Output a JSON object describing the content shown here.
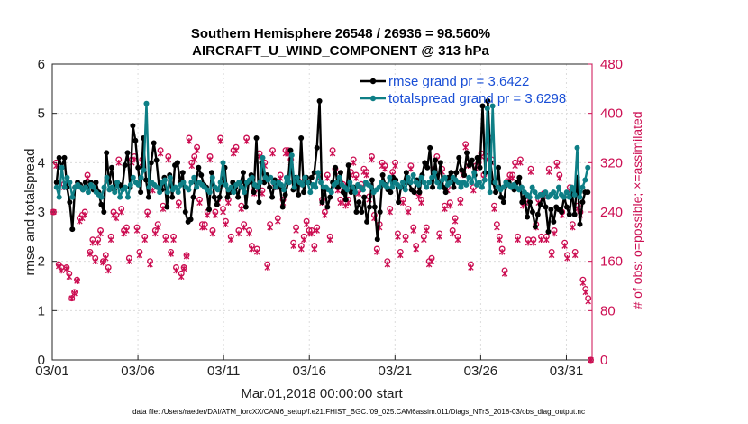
{
  "chart_data": {
    "type": "line",
    "title": "Southern Hemisphere 26548 / 26936 = 98.560%",
    "subtitle": "AIRCRAFT_U_WIND_COMPONENT @ 313 hPa",
    "xlabel": "Mar.01,2018 00:00:00 start",
    "ylabel_left": "rmse and totalspread",
    "ylabel_right": "# of obs: o=possible; ×=assimilated",
    "xlim": [
      0,
      31.5
    ],
    "ylim_left": [
      0,
      6
    ],
    "ylim_right": [
      0,
      480
    ],
    "x_tick_values": [
      0,
      5,
      10,
      15,
      20,
      25,
      30
    ],
    "x_tick_labels": [
      "03/01",
      "03/06",
      "03/11",
      "03/16",
      "03/21",
      "03/26",
      "03/31"
    ],
    "y_left_ticks": [
      "0",
      "1",
      "2",
      "3",
      "4",
      "5",
      "6"
    ],
    "y_right_ticks": [
      "0",
      "80",
      "160",
      "240",
      "320",
      "400",
      "480"
    ],
    "colors": {
      "rmse": "#000000",
      "spread": "#0e7f86",
      "obs": "#cc0e52",
      "legend_text": "#1a4fd6"
    },
    "series": [
      {
        "name": "rmse",
        "legend": "rmse grand pr = 3.6422",
        "values": [
          3.6,
          4.1,
          3.9,
          4.1,
          3.5,
          3.2,
          2.65,
          3.5,
          3.6,
          3.55,
          3.45,
          3.6,
          3.5,
          3.6,
          3.45,
          3.6,
          3.4,
          3.15,
          3.0,
          4.2,
          3.6,
          3.9,
          3.45,
          3.6,
          3.55,
          3.5,
          3.95,
          4.2,
          3.5,
          4.75,
          4.45,
          3.9,
          3.4,
          4.5,
          3.65,
          3.3,
          4.0,
          4.4,
          4.05,
          3.5,
          3.45,
          3.7,
          3.1,
          3.75,
          3.3,
          3.95,
          4.0,
          3.6,
          3.8,
          3.0,
          2.8,
          2.85,
          3.3,
          3.6,
          3.9,
          3.75,
          3.55,
          3.5,
          3.05,
          3.8,
          3.3,
          3.15,
          3.3,
          3.6,
          3.9,
          3.3,
          3.4,
          3.6,
          3.5,
          3.3,
          3.6,
          3.8,
          3.1,
          3.6,
          3.75,
          3.4,
          4.5,
          3.2,
          4.0,
          3.6,
          3.75,
          3.5,
          3.3,
          3.65,
          3.55,
          3.5,
          3.1,
          3.35,
          3.6,
          4.25,
          3.45,
          3.7,
          3.35,
          4.5,
          3.4,
          3.7,
          3.6,
          3.7,
          3.8,
          4.3,
          5.25,
          3.2,
          3.45,
          3.1,
          3.3,
          3.6,
          3.9,
          3.5,
          3.8,
          3.4,
          3.25,
          3.95,
          3.4,
          3.5,
          3.0,
          3.2,
          3.0,
          3.3,
          2.8,
          3.1,
          3.65,
          3.1,
          2.45,
          3.0,
          3.75,
          3.55,
          3.45,
          3.4,
          3.7,
          3.65,
          3.2,
          3.5,
          3.6,
          3.8,
          3.6,
          3.45,
          3.4,
          3.65,
          3.4,
          3.75,
          4.0,
          3.9,
          4.3,
          3.5,
          4.05,
          3.6,
          4.0,
          3.5,
          3.4,
          3.7,
          3.8,
          3.5,
          3.8,
          4.1,
          3.85,
          3.75,
          4.2,
          3.95,
          4.05,
          3.75,
          4.1,
          3.9,
          5.15,
          3.8,
          5.25,
          4.0,
          3.6,
          3.4,
          3.9,
          3.3,
          3.2,
          3.55,
          3.6,
          3.5,
          3.45,
          3.6,
          3.7,
          3.2,
          3.3,
          2.9,
          3.2,
          3.0,
          2.7,
          2.95,
          3.15,
          3.35,
          3.1,
          2.6,
          3.05,
          2.8,
          3.1,
          3.05,
          3.0,
          3.3,
          3.1,
          2.95,
          3.4,
          2.95,
          3.7,
          2.75,
          3.2,
          3.4,
          3.4
        ]
      },
      {
        "name": "totalspread",
        "legend": "totalspread grand pr = 3.6298",
        "values": [
          3.5,
          3.3,
          3.9,
          3.5,
          3.7,
          3.6,
          3.3,
          3.5,
          3.55,
          3.5,
          3.45,
          3.5,
          3.4,
          3.55,
          3.5,
          3.4,
          3.35,
          3.3,
          3.5,
          3.7,
          3.45,
          3.5,
          3.4,
          3.6,
          3.3,
          3.45,
          3.5,
          3.3,
          3.55,
          3.7,
          3.6,
          3.55,
          3.7,
          3.85,
          5.2,
          3.5,
          3.6,
          3.55,
          3.5,
          3.4,
          3.6,
          3.65,
          3.4,
          3.7,
          3.45,
          3.5,
          3.4,
          3.55,
          3.6,
          3.5,
          3.45,
          3.6,
          3.7,
          3.5,
          3.6,
          3.55,
          3.5,
          3.45,
          3.4,
          3.7,
          3.5,
          3.45,
          3.6,
          4.0,
          3.55,
          3.45,
          3.5,
          3.4,
          3.55,
          3.6,
          3.5,
          3.4,
          3.6,
          3.65,
          3.7,
          3.55,
          3.5,
          3.6,
          4.1,
          3.7,
          3.65,
          3.7,
          3.6,
          3.5,
          3.6,
          3.55,
          3.45,
          3.7,
          3.6,
          4.15,
          3.5,
          3.7,
          3.6,
          3.55,
          3.7,
          3.6,
          3.4,
          3.55,
          3.5,
          3.8,
          3.6,
          3.5,
          3.5,
          3.45,
          3.4,
          3.55,
          3.6,
          3.7,
          3.55,
          3.5,
          3.45,
          3.6,
          3.5,
          3.4,
          3.55,
          3.5,
          3.45,
          3.6,
          3.55,
          3.5,
          3.4,
          3.45,
          3.5,
          3.6,
          3.55,
          3.5,
          3.7,
          3.5,
          3.6,
          3.55,
          3.5,
          3.6,
          3.45,
          3.7,
          3.6,
          3.75,
          3.6,
          3.55,
          3.7,
          3.6,
          3.5,
          3.6,
          3.7,
          3.8,
          3.6,
          3.5,
          3.65,
          3.7,
          3.55,
          3.6,
          3.7,
          3.65,
          3.6,
          3.5,
          3.6,
          3.55,
          3.7,
          3.6,
          3.8,
          3.55,
          3.6,
          3.5,
          3.65,
          5.1,
          3.4,
          5.15,
          3.6,
          3.5,
          3.45,
          3.5,
          3.6,
          3.55,
          3.5,
          3.55,
          3.5,
          3.45,
          3.5,
          3.4,
          3.35,
          3.3,
          3.5,
          3.4,
          3.3,
          3.35,
          3.35,
          3.4,
          3.3,
          3.35,
          3.4,
          3.3,
          3.5,
          3.35,
          3.3,
          3.4,
          3.3,
          3.5,
          3.35,
          4.3,
          3.3,
          3.5,
          3.65,
          3.9
        ]
      },
      {
        "name": "obs_possible",
        "marker": "o",
        "axis": "right",
        "values": [
          240,
          320,
          155,
          150,
          285,
          150,
          140,
          100,
          110,
          130,
          230,
          235,
          240,
          300,
          175,
          195,
          165,
          195,
          210,
          160,
          170,
          150,
          200,
          240,
          235,
          325,
          245,
          210,
          215,
          165,
          325,
          330,
          215,
          175,
          325,
          200,
          240,
          160,
          280,
          210,
          220,
          340,
          250,
          200,
          330,
          175,
          200,
          150,
          255,
          140,
          150,
          170,
          360,
          320,
          330,
          345,
          260,
          220,
          220,
          240,
          330,
          210,
          240,
          260,
          360,
          245,
          225,
          260,
          200,
          340,
          345,
          210,
          250,
          220,
          360,
          210,
          185,
          275,
          180,
          335,
          275,
          320,
          155,
          220,
          340,
          285,
          230,
          300,
          260,
          340,
          340,
          325,
          190,
          215,
          290,
          185,
          200,
          225,
          210,
          210,
          185,
          215,
          300,
          260,
          240,
          300,
          200,
          340,
          310,
          280,
          260,
          285,
          255,
          260,
          305,
          325,
          300,
          275,
          285,
          310,
          305,
          265,
          330,
          235,
          180,
          220,
          320,
          315,
          160,
          245,
          305,
          320,
          205,
          175,
          260,
          200,
          245,
          315,
          215,
          185,
          270,
          260,
          200,
          215,
          160,
          165,
          310,
          330,
          205,
          310,
          250,
          280,
          255,
          210,
          230,
          200,
          260,
          305,
          350,
          320,
          155,
          280,
          315,
          320,
          335,
          300,
          330,
          360,
          325,
          250,
          220,
          200,
          180,
          145,
          290,
          300,
          300,
          320,
          200,
          325,
          255,
          260,
          195,
          310,
          195,
          220,
          260,
          200,
          270,
          200,
          310,
          175,
          210,
          320,
          300,
          240,
          190,
          170,
          280,
          220,
          175,
          250,
          240,
          130,
          115,
          100,
          0
        ]
      },
      {
        "name": "obs_assimilated",
        "marker": "x",
        "axis": "right",
        "values": [
          240,
          315,
          152,
          145,
          280,
          148,
          135,
          100,
          108,
          128,
          225,
          230,
          235,
          295,
          172,
          190,
          160,
          190,
          205,
          158,
          165,
          145,
          195,
          235,
          230,
          320,
          240,
          205,
          210,
          160,
          320,
          325,
          210,
          170,
          320,
          195,
          235,
          155,
          275,
          205,
          215,
          335,
          245,
          195,
          325,
          172,
          195,
          145,
          250,
          135,
          148,
          168,
          355,
          315,
          325,
          340,
          255,
          215,
          215,
          235,
          325,
          205,
          235,
          255,
          355,
          240,
          220,
          255,
          195,
          335,
          340,
          205,
          245,
          215,
          355,
          205,
          180,
          270,
          175,
          330,
          270,
          315,
          150,
          215,
          335,
          280,
          225,
          295,
          255,
          335,
          335,
          320,
          185,
          210,
          285,
          180,
          195,
          220,
          205,
          205,
          180,
          210,
          295,
          255,
          235,
          295,
          195,
          335,
          305,
          275,
          255,
          280,
          250,
          255,
          300,
          320,
          295,
          270,
          280,
          305,
          300,
          260,
          325,
          230,
          175,
          215,
          315,
          310,
          155,
          240,
          300,
          315,
          200,
          170,
          255,
          195,
          240,
          310,
          210,
          180,
          265,
          255,
          195,
          210,
          155,
          160,
          305,
          325,
          200,
          305,
          245,
          275,
          250,
          205,
          225,
          195,
          255,
          300,
          345,
          315,
          150,
          275,
          310,
          315,
          330,
          295,
          325,
          355,
          320,
          245,
          215,
          195,
          175,
          140,
          285,
          295,
          295,
          315,
          195,
          320,
          250,
          255,
          190,
          305,
          190,
          215,
          255,
          195,
          265,
          195,
          305,
          170,
          205,
          315,
          295,
          235,
          185,
          165,
          275,
          215,
          170,
          245,
          235,
          125,
          110,
          95,
          0
        ]
      }
    ],
    "footer": "data file: /Users/raeder/DAI/ATM_forcXX/CAM6_setup/f.e21.FHIST_BGC.f09_025.CAM6assim.011/Diags_NTrS_2018-03/obs_diag_output.nc"
  }
}
